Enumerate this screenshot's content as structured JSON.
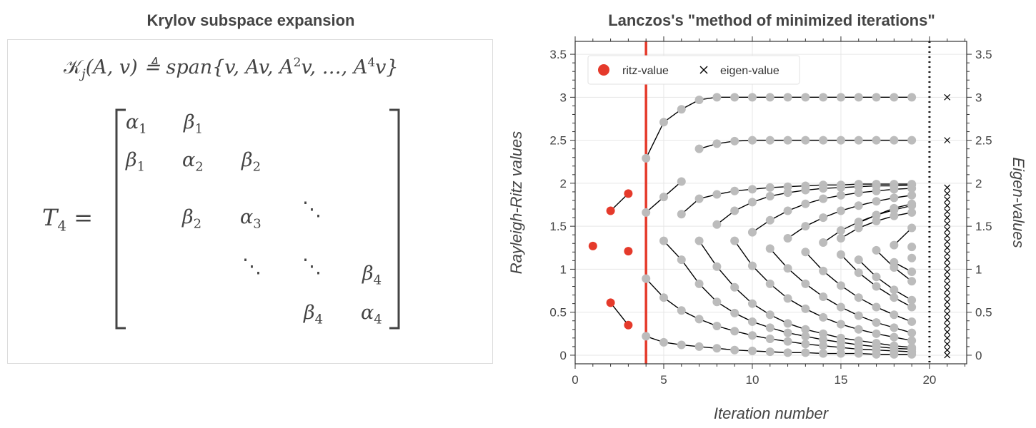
{
  "left_panel": {
    "title": "Krylov subspace expansion",
    "krylov_formula": {
      "lhs": "𝒦",
      "sub": "j",
      "args": "(A, v) ≜ span{v, Av, A",
      "pow2": "2",
      "mid": "v, …, A",
      "pow4": "4",
      "tail": "v}"
    },
    "matrix": {
      "lhs": "T",
      "lhs_sub": "4",
      "eq": "=",
      "entries": [
        {
          "sym": "α",
          "sub": "1"
        },
        {
          "sym": "β",
          "sub": "1"
        },
        {
          "sym": "β",
          "sub": "1"
        },
        {
          "sym": "α",
          "sub": "2"
        },
        {
          "sym": "β",
          "sub": "2"
        },
        {
          "sym": "β",
          "sub": "2"
        },
        {
          "sym": "α",
          "sub": "3"
        },
        {
          "sym": "⋱",
          "sub": ""
        },
        {
          "sym": "⋱",
          "sub": ""
        },
        {
          "sym": "⋱",
          "sub": ""
        },
        {
          "sym": "β",
          "sub": "4"
        },
        {
          "sym": "β",
          "sub": "4"
        },
        {
          "sym": "α",
          "sub": "4"
        }
      ]
    }
  },
  "chart_data": {
    "type": "scatter",
    "title": "Lanczos's \"method of minimized iterations\"",
    "xlabel": "Iteration number",
    "ylabel": "Rayleigh-Ritz values",
    "ylabel_right": "Eigen-values",
    "xlim": [
      0,
      22.1
    ],
    "ylim": [
      -0.1,
      3.65
    ],
    "x_ticks": [
      0,
      5,
      10,
      15,
      20
    ],
    "y_ticks": [
      0,
      0.5,
      1,
      1.5,
      2,
      2.5,
      3,
      3.5
    ],
    "y_tick_labels": [
      "0",
      "0.5",
      "1",
      "1.5",
      "2",
      "2.5",
      "3",
      "3.5"
    ],
    "grid": true,
    "current_iteration": 4,
    "eigen_column_x": 21,
    "separator_x": 20,
    "legend": {
      "position": "top-left",
      "entries": [
        "ritz-value",
        "eigen-value"
      ]
    },
    "colors": {
      "ritz_active": "#e53a2b",
      "ritz_past": "#bcbcbc",
      "vline": "#e53a2b",
      "line": "#000000"
    },
    "eigen_values": [
      0.0,
      0.06,
      0.13,
      0.2,
      0.27,
      0.34,
      0.41,
      0.48,
      0.55,
      0.62,
      0.69,
      0.76,
      0.83,
      0.9,
      0.97,
      1.04,
      1.11,
      1.18,
      1.25,
      1.32,
      1.39,
      1.46,
      1.53,
      1.6,
      1.67,
      1.74,
      1.81,
      1.88,
      1.95,
      2.5,
      3.0
    ],
    "active_series": [
      {
        "x": [
          1
        ],
        "y": [
          1.27
        ]
      },
      {
        "x": [
          2,
          3
        ],
        "y": [
          0.61,
          0.35
        ]
      },
      {
        "x": [
          2,
          3
        ],
        "y": [
          1.68,
          1.88
        ]
      },
      {
        "x": [
          3
        ],
        "y": [
          1.21
        ]
      }
    ],
    "past_series": [
      {
        "x": [
          4,
          5,
          6,
          7,
          8,
          9,
          10,
          11,
          12,
          13,
          14,
          15,
          16,
          17,
          18,
          19
        ],
        "y": [
          2.29,
          2.71,
          2.86,
          2.97,
          3.0,
          3.0,
          3.0,
          3.0,
          3.0,
          3.0,
          3.0,
          3.0,
          3.0,
          3.0,
          3.0,
          3.0
        ]
      },
      {
        "x": [
          4,
          5,
          6,
          7,
          8,
          9,
          10,
          11,
          12,
          13,
          14,
          15,
          16,
          17,
          18,
          19
        ],
        "y": [
          0.22,
          0.15,
          0.12,
          0.1,
          0.08,
          0.06,
          0.05,
          0.04,
          0.03,
          0.03,
          0.02,
          0.02,
          0.02,
          0.01,
          0.01,
          0.01
        ]
      },
      {
        "x": [
          4,
          5,
          6
        ],
        "y": [
          1.66,
          1.84,
          2.02
        ]
      },
      {
        "x": [
          7,
          8,
          9,
          10,
          11,
          12,
          13,
          14,
          15,
          16,
          17,
          18,
          19
        ],
        "y": [
          2.4,
          2.46,
          2.49,
          2.5,
          2.5,
          2.5,
          2.5,
          2.5,
          2.5,
          2.5,
          2.5,
          2.5,
          2.5
        ]
      },
      {
        "x": [
          4,
          5,
          6,
          7,
          8,
          9,
          10,
          11,
          12,
          13,
          14,
          15,
          16,
          17,
          18,
          19
        ],
        "y": [
          0.89,
          0.67,
          0.52,
          0.42,
          0.34,
          0.28,
          0.23,
          0.19,
          0.16,
          0.13,
          0.11,
          0.09,
          0.07,
          0.06,
          0.05,
          0.04
        ]
      },
      {
        "x": [
          5,
          6,
          7,
          8,
          9,
          10,
          11,
          12,
          13,
          14,
          15,
          16,
          17,
          18,
          19
        ],
        "y": [
          1.33,
          1.11,
          0.83,
          0.62,
          0.49,
          0.39,
          0.32,
          0.26,
          0.22,
          0.18,
          0.15,
          0.12,
          0.1,
          0.08,
          0.07
        ]
      },
      {
        "x": [
          6,
          7,
          8,
          9,
          10,
          11,
          12,
          13,
          14,
          15,
          16,
          17,
          18,
          19
        ],
        "y": [
          1.64,
          1.82,
          1.87,
          1.91,
          1.93,
          1.95,
          1.96,
          1.97,
          1.98,
          1.98,
          1.99,
          1.99,
          1.99,
          1.99
        ]
      },
      {
        "x": [
          7,
          8,
          9,
          10,
          11,
          12,
          13,
          14,
          15,
          16,
          17,
          18,
          19
        ],
        "y": [
          1.33,
          1.03,
          0.79,
          0.6,
          0.47,
          0.37,
          0.3,
          0.25,
          0.2,
          0.17,
          0.14,
          0.11,
          0.09
        ]
      },
      {
        "x": [
          8,
          9,
          10,
          11,
          12,
          13,
          14,
          15,
          16,
          17,
          18,
          19
        ],
        "y": [
          1.52,
          1.68,
          1.78,
          1.85,
          1.89,
          1.92,
          1.94,
          1.95,
          1.96,
          1.97,
          1.97,
          1.98
        ]
      },
      {
        "x": [
          9,
          10,
          11,
          12,
          13,
          14,
          15,
          16,
          17,
          18,
          19
        ],
        "y": [
          1.33,
          1.04,
          0.83,
          0.66,
          0.54,
          0.44,
          0.36,
          0.3,
          0.25,
          0.21,
          0.17
        ]
      },
      {
        "x": [
          10,
          11,
          12,
          13,
          14,
          15,
          16,
          17,
          18,
          19
        ],
        "y": [
          1.43,
          1.57,
          1.68,
          1.76,
          1.82,
          1.86,
          1.89,
          1.91,
          1.93,
          1.94
        ]
      },
      {
        "x": [
          11,
          12,
          13,
          14,
          15,
          16,
          17,
          18,
          19
        ],
        "y": [
          1.24,
          1.01,
          0.83,
          0.68,
          0.56,
          0.46,
          0.38,
          0.32,
          0.26
        ]
      },
      {
        "x": [
          12,
          13,
          14,
          15,
          16,
          17,
          18,
          19
        ],
        "y": [
          1.36,
          1.5,
          1.6,
          1.68,
          1.74,
          1.79,
          1.83,
          1.86
        ]
      },
      {
        "x": [
          13,
          14,
          15,
          16,
          17,
          18,
          19
        ],
        "y": [
          1.2,
          0.98,
          0.81,
          0.67,
          0.56,
          0.47,
          0.39
        ]
      },
      {
        "x": [
          14,
          15,
          16,
          17,
          18,
          19
        ],
        "y": [
          1.31,
          1.45,
          1.55,
          1.63,
          1.69,
          1.74
        ]
      },
      {
        "x": [
          15,
          16,
          17,
          18,
          19
        ],
        "y": [
          1.17,
          0.96,
          0.8,
          0.67,
          0.56
        ]
      },
      {
        "x": [
          15,
          16,
          17,
          18,
          19
        ],
        "y": [
          1.36,
          1.48,
          1.56,
          1.62,
          1.66
        ]
      },
      {
        "x": [
          16,
          17,
          18,
          19
        ],
        "y": [
          1.11,
          0.91,
          0.76,
          0.64
        ]
      },
      {
        "x": [
          16,
          17,
          18,
          19
        ],
        "y": [
          1.54,
          1.63,
          1.71,
          1.76
        ]
      },
      {
        "x": [
          17,
          18,
          19
        ],
        "y": [
          1.22,
          1.02,
          0.86
        ]
      },
      {
        "x": [
          18,
          19
        ],
        "y": [
          1.28,
          1.48
        ]
      },
      {
        "x": [
          18,
          19
        ],
        "y": [
          1.08,
          0.97
        ]
      },
      {
        "x": [
          19
        ],
        "y": [
          1.13
        ]
      },
      {
        "x": [
          19
        ],
        "y": [
          1.26
        ]
      }
    ]
  }
}
